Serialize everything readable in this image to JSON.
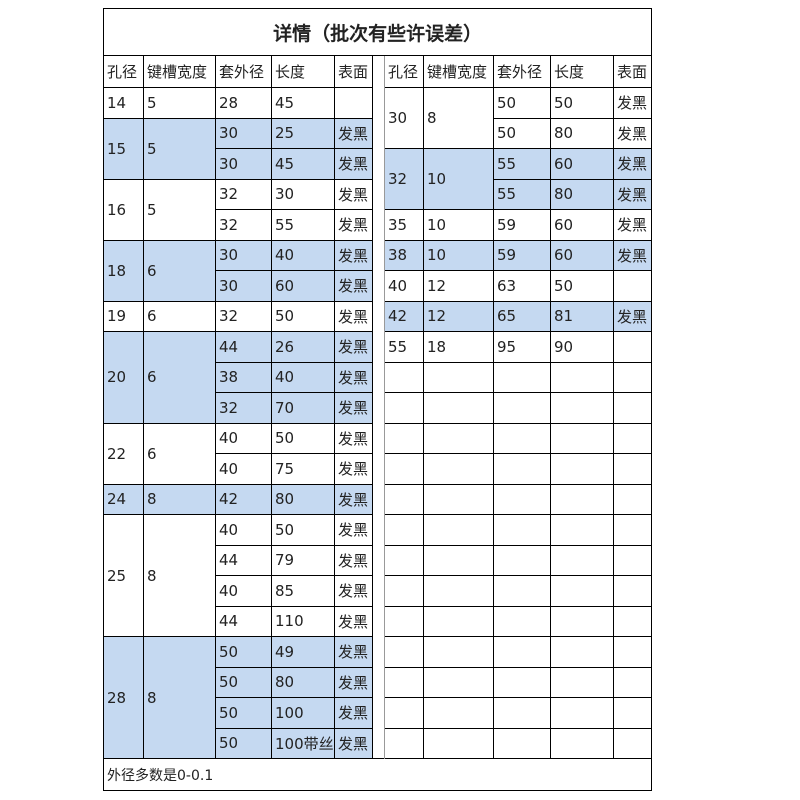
{
  "title": "详情（批次有些许误差）",
  "headers": [
    "孔径",
    "键槽宽度",
    "套外径",
    "长度",
    "表面"
  ],
  "left": {
    "groups": [
      {
        "hole": "14",
        "slot": "5",
        "highlight": false,
        "rows": [
          [
            "28",
            "45"
          ]
        ]
      },
      {
        "hole": "15",
        "slot": "5",
        "highlight": true,
        "rows": [
          [
            "30",
            "25",
            "发黑"
          ],
          [
            "30",
            "45",
            "发黑"
          ]
        ]
      },
      {
        "hole": "16",
        "slot": "5",
        "highlight": false,
        "rows": [
          [
            "32",
            "30",
            "发黑"
          ],
          [
            "32",
            "55",
            "发黑"
          ]
        ]
      },
      {
        "hole": "18",
        "slot": "6",
        "highlight": true,
        "rows": [
          [
            "30",
            "40",
            "发黑"
          ],
          [
            "30",
            "60",
            "发黑"
          ]
        ]
      },
      {
        "hole": "19",
        "slot": "6",
        "highlight": false,
        "rows": [
          [
            "32",
            "50",
            "发黑"
          ]
        ]
      },
      {
        "hole": "20",
        "slot": "6",
        "highlight": true,
        "rows": [
          [
            "44",
            "26",
            "发黑"
          ],
          [
            "38",
            "40",
            "发黑"
          ],
          [
            "32",
            "70",
            "发黑"
          ]
        ]
      },
      {
        "hole": "22",
        "slot": "6",
        "highlight": false,
        "rows": [
          [
            "40",
            "50",
            "发黑"
          ],
          [
            "40",
            "75",
            "发黑"
          ]
        ]
      },
      {
        "hole": "24",
        "slot": "8",
        "highlight": true,
        "rows": [
          [
            "42",
            "80",
            "发黑"
          ]
        ]
      },
      {
        "hole": "25",
        "slot": "8",
        "highlight": false,
        "rows": [
          [
            "40",
            "50",
            "发黑"
          ],
          [
            "44",
            "79",
            "发黑"
          ],
          [
            "40",
            "85",
            "发黑"
          ],
          [
            "44",
            "110",
            "发黑"
          ]
        ]
      },
      {
        "hole": "28",
        "slot": "8",
        "highlight": true,
        "rows": [
          [
            "50",
            "49",
            "发黑"
          ],
          [
            "50",
            "80",
            "发黑"
          ],
          [
            "50",
            "100",
            "发黑"
          ],
          [
            "50",
            "100带丝",
            "发黑"
          ]
        ]
      }
    ]
  },
  "right": {
    "groups": [
      {
        "hole": "30",
        "slot": "8",
        "highlight": false,
        "rows": [
          [
            "50",
            "50",
            "发黑"
          ],
          [
            "50",
            "80",
            "发黑"
          ]
        ]
      },
      {
        "hole": "32",
        "slot": "10",
        "highlight": true,
        "rows": [
          [
            "55",
            "60",
            "发黑"
          ],
          [
            "55",
            "80",
            "发黑"
          ]
        ]
      },
      {
        "hole": "35",
        "slot": "10",
        "highlight": false,
        "rows": [
          [
            "59",
            "60",
            "发黑"
          ]
        ]
      },
      {
        "hole": "38",
        "slot": "10",
        "highlight": true,
        "rows": [
          [
            "59",
            "60",
            "发黑"
          ]
        ]
      },
      {
        "hole": "40",
        "slot": "12",
        "highlight": false,
        "rows": [
          [
            "63",
            "50"
          ]
        ]
      },
      {
        "hole": "42",
        "slot": "12",
        "highlight": true,
        "rows": [
          [
            "65",
            "81",
            "发黑"
          ]
        ]
      },
      {
        "hole": "55",
        "slot": "18",
        "highlight": false,
        "rows": [
          [
            "95",
            "90"
          ]
        ]
      }
    ]
  },
  "footer": "外径多数是0-0.1"
}
